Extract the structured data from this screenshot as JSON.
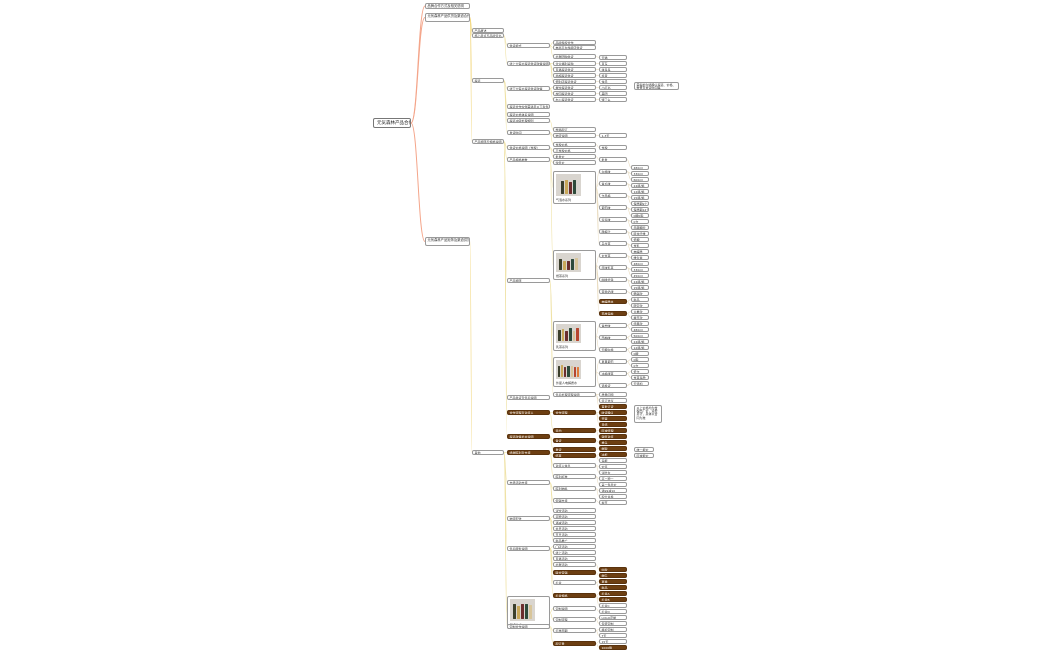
{
  "root": "元気森林产品合作",
  "level1": [
    "品牌合作方式及相关说明",
    "元気森林产品供货及渠道合作说明",
    "元気森林产品矩阵及渠道供货说明"
  ],
  "level2": [
    "产品概述",
    "核心卖点与品牌背书",
    "渠道",
    "产品矩阵与规格说明",
    "其他"
  ],
  "level3": [
    "供货模式",
    "线上大客户渠道供货政策说明",
    "线下大客户渠道供货政策",
    "渠道合作伙伴需满足以下条件",
    "渠道价格体系说明",
    "渠道冲突处理规则",
    "发货时间",
    "供货价格说明（含税）",
    "产品规格参数",
    "产品矩阵",
    "产品供货及售后说明",
    "合作流程及对接人",
    "渠道政策补充说明",
    "终端陈列及支持",
    "市场活动支持",
    "物流配送",
    "售后服务说明",
    "联名礼盒",
    "定制合作说明"
  ],
  "level4": [
    "品牌授权合作",
    "电商平台旗舰店供货",
    "社群团购供货",
    "企业福利采购",
    "直播渠道供货",
    "商超渠道供货",
    "便利店渠道供货",
    "餐饮渠道供货",
    "校园渠道供货",
    "办公渠道供货",
    "整箱起订",
    "物流说明",
    "含税价格",
    "不含税价格",
    "批发价",
    "零售价",
    "气泡水系列",
    "燃茶系列",
    "乳茶系列",
    "外星人电解质水",
    "售后处理流程说明",
    "合作流程",
    "签约",
    "备货",
    "发货",
    "结算",
    "对接人信息",
    "陈列标准",
    "陈列物料",
    "促销支持",
    "试饮活动",
    "买赠活动",
    "满减活动",
    "会员活动",
    "节日活动",
    "新品推广",
    "门店活动",
    "线上活动",
    "直播活动",
    "社群活动",
    "联合营销",
    "礼盒",
    "礼盒规格",
    "定制说明",
    "定制流程",
    "打样周期",
    "起订量"
  ],
  "level5": [
    "天猫",
    "京东",
    "拼多多",
    "抖音",
    "快手",
    "小红书",
    "美团",
    "饿了么",
    "1-3天",
    "含税",
    "批发",
    "白桃味",
    "青瓜味",
    "卡曼橘",
    "葡萄味",
    "莓莓味",
    "酸梅汁",
    "乌龙茶",
    "玄米茶",
    "原味乳茶",
    "咖啡拿铁",
    "茉香奶绿",
    "电解质水",
    "荔枝海盐",
    "青柠味",
    "西柚味",
    "无糖白桃",
    "夏黑葡萄",
    "冰橘绿茶",
    "退换货",
    "质量问题",
    "签订协议",
    "首批订货",
    "收货确认",
    "开票",
    "月结",
    "区域经理",
    "销售对接",
    "堆头",
    "端架",
    "冰柜",
    "海报",
    "价签",
    "试吃台",
    "买二赠一",
    "第二件半价",
    "满99减10",
    "积分兑换",
    "春节",
    "中秋",
    "端午",
    "夏季",
    "新品",
    "礼盒A",
    "礼盒B",
    "礼盒C",
    "礼盒D",
    "LOGO定制",
    "包装定制",
    "瓶标定制",
    "7天",
    "15天",
    "1000箱"
  ],
  "level6": [
    "480ml",
    "330ml",
    "600ml",
    "24瓶/箱",
    "12瓶/箱",
    "15瓶/箱",
    "保质期9个月",
    "保质期12个月",
    "0糖0脂",
    "0卡",
    "赤藓糖醇",
    "膳食纤维",
    "低糖",
    "含乳",
    "电解质",
    "维生素",
    "480ml",
    "330ml",
    "450ml",
    "24瓶/箱",
    "15瓶/箱",
    "畅销款",
    "新品",
    "限定款",
    "主推款",
    "季节款",
    "经典款",
    "480ml",
    "500ml",
    "24瓶/箱",
    "12瓶/箱",
    "0糖",
    "0脂",
    "0卡",
    "低卡",
    "含茶多酚",
    "无添加"
  ],
  "notes": [
    "需提前沟通确认渠道、价格、数量及发货时间等",
    "以上价格均为含税出厂价，运费另计，具体以合同为准",
    "统一报价",
    "区域报价"
  ]
}
